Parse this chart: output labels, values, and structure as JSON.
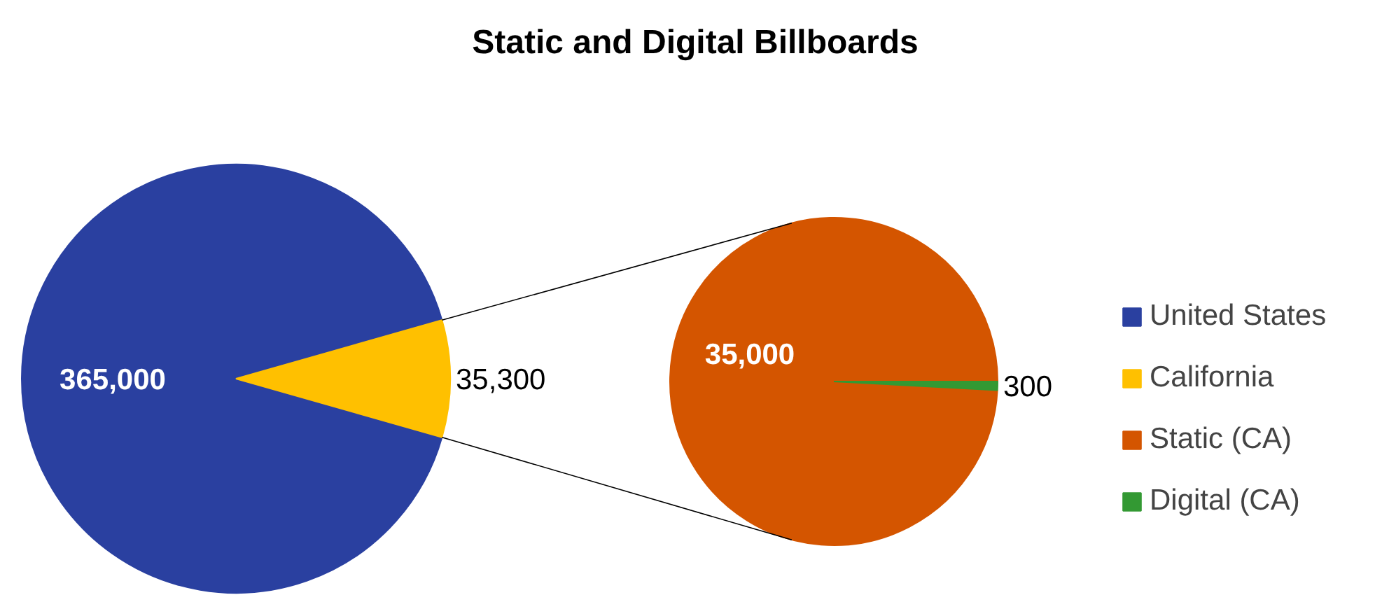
{
  "chart_data": [
    {
      "type": "pie",
      "title": "Static and Digital Billboards",
      "categories": [
        "United States",
        "California"
      ],
      "values": [
        365000,
        35300
      ],
      "colors": [
        "#2a40a0",
        "#ffc000"
      ],
      "value_labels": [
        "365,000",
        "35,300"
      ],
      "legend": "right"
    },
    {
      "type": "pie",
      "categories": [
        "Static (CA)",
        "Digital (CA)"
      ],
      "values": [
        35000,
        300
      ],
      "colors": [
        "#d45500",
        "#339933"
      ],
      "value_labels": [
        "35,000",
        "300"
      ],
      "legend": "right"
    }
  ]
}
